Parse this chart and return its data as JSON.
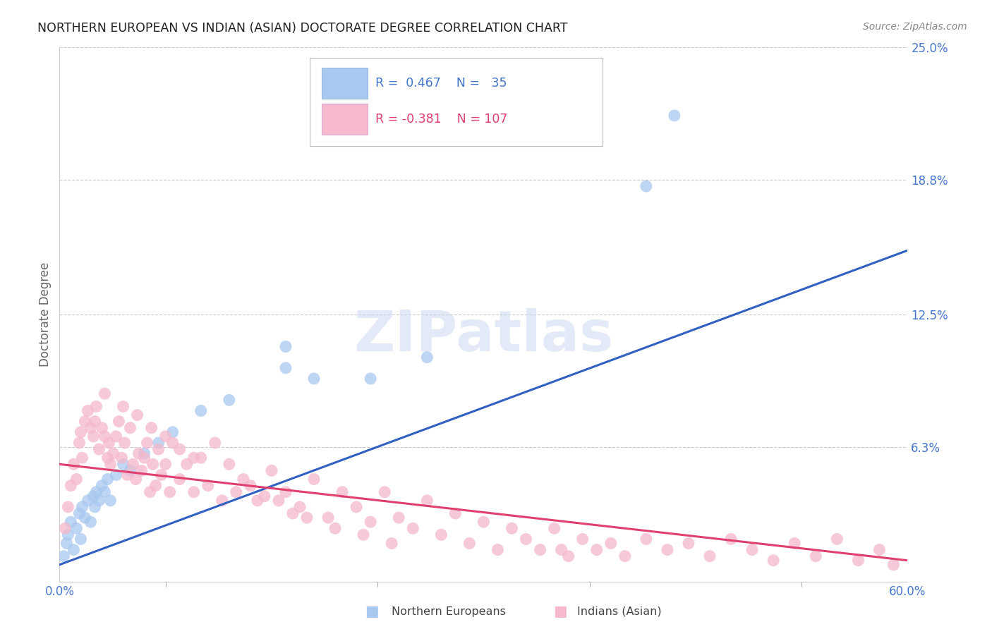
{
  "title": "NORTHERN EUROPEAN VS INDIAN (ASIAN) DOCTORATE DEGREE CORRELATION CHART",
  "source": "Source: ZipAtlas.com",
  "ylabel": "Doctorate Degree",
  "xlim": [
    0.0,
    0.6
  ],
  "ylim": [
    0.0,
    0.25
  ],
  "ytick_positions": [
    0.0,
    0.063,
    0.125,
    0.188,
    0.25
  ],
  "ytick_labels": [
    "",
    "6.3%",
    "12.5%",
    "18.8%",
    "25.0%"
  ],
  "xtick_positions": [
    0.0,
    0.15,
    0.3,
    0.45,
    0.6
  ],
  "xtick_labels": [
    "0.0%",
    "",
    "",
    "",
    "60.0%"
  ],
  "xtick_minor": [
    0.075,
    0.225,
    0.375,
    0.525
  ],
  "blue_R": 0.467,
  "blue_N": 35,
  "pink_R": -0.381,
  "pink_N": 107,
  "blue_color": "#a8c8f0",
  "pink_color": "#f5b8cc",
  "blue_line_color": "#3060c0",
  "pink_line_color": "#e04070",
  "blue_scatter_x": [
    0.003,
    0.005,
    0.006,
    0.008,
    0.01,
    0.012,
    0.014,
    0.015,
    0.016,
    0.018,
    0.02,
    0.022,
    0.024,
    0.025,
    0.026,
    0.028,
    0.03,
    0.032,
    0.034,
    0.036,
    0.04,
    0.045,
    0.05,
    0.06,
    0.07,
    0.08,
    0.1,
    0.12,
    0.16,
    0.18,
    0.22,
    0.26,
    0.16,
    0.415,
    0.435
  ],
  "blue_scatter_y": [
    0.012,
    0.018,
    0.022,
    0.028,
    0.015,
    0.025,
    0.032,
    0.02,
    0.035,
    0.03,
    0.038,
    0.028,
    0.04,
    0.035,
    0.042,
    0.038,
    0.045,
    0.042,
    0.048,
    0.038,
    0.05,
    0.055,
    0.052,
    0.06,
    0.065,
    0.07,
    0.08,
    0.085,
    0.1,
    0.095,
    0.095,
    0.105,
    0.11,
    0.185,
    0.218
  ],
  "pink_scatter_x": [
    0.004,
    0.006,
    0.008,
    0.01,
    0.012,
    0.014,
    0.015,
    0.016,
    0.018,
    0.02,
    0.022,
    0.024,
    0.025,
    0.026,
    0.028,
    0.03,
    0.032,
    0.034,
    0.035,
    0.036,
    0.038,
    0.04,
    0.042,
    0.044,
    0.046,
    0.048,
    0.05,
    0.052,
    0.054,
    0.056,
    0.058,
    0.06,
    0.062,
    0.064,
    0.066,
    0.068,
    0.07,
    0.072,
    0.075,
    0.078,
    0.08,
    0.085,
    0.09,
    0.095,
    0.1,
    0.105,
    0.11,
    0.115,
    0.12,
    0.125,
    0.13,
    0.14,
    0.15,
    0.16,
    0.17,
    0.18,
    0.19,
    0.2,
    0.21,
    0.22,
    0.23,
    0.24,
    0.25,
    0.26,
    0.27,
    0.28,
    0.29,
    0.3,
    0.31,
    0.32,
    0.33,
    0.34,
    0.35,
    0.36,
    0.37,
    0.38,
    0.39,
    0.4,
    0.415,
    0.43,
    0.445,
    0.46,
    0.475,
    0.49,
    0.505,
    0.52,
    0.535,
    0.55,
    0.565,
    0.58,
    0.59,
    0.032,
    0.045,
    0.055,
    0.065,
    0.075,
    0.085,
    0.095,
    0.135,
    0.145,
    0.155,
    0.165,
    0.175,
    0.195,
    0.215,
    0.235,
    0.355
  ],
  "pink_scatter_y": [
    0.025,
    0.035,
    0.045,
    0.055,
    0.048,
    0.065,
    0.07,
    0.058,
    0.075,
    0.08,
    0.072,
    0.068,
    0.075,
    0.082,
    0.062,
    0.072,
    0.068,
    0.058,
    0.065,
    0.055,
    0.06,
    0.068,
    0.075,
    0.058,
    0.065,
    0.05,
    0.072,
    0.055,
    0.048,
    0.06,
    0.052,
    0.058,
    0.065,
    0.042,
    0.055,
    0.045,
    0.062,
    0.05,
    0.055,
    0.042,
    0.065,
    0.048,
    0.055,
    0.042,
    0.058,
    0.045,
    0.065,
    0.038,
    0.055,
    0.042,
    0.048,
    0.038,
    0.052,
    0.042,
    0.035,
    0.048,
    0.03,
    0.042,
    0.035,
    0.028,
    0.042,
    0.03,
    0.025,
    0.038,
    0.022,
    0.032,
    0.018,
    0.028,
    0.015,
    0.025,
    0.02,
    0.015,
    0.025,
    0.012,
    0.02,
    0.015,
    0.018,
    0.012,
    0.02,
    0.015,
    0.018,
    0.012,
    0.02,
    0.015,
    0.01,
    0.018,
    0.012,
    0.02,
    0.01,
    0.015,
    0.008,
    0.088,
    0.082,
    0.078,
    0.072,
    0.068,
    0.062,
    0.058,
    0.045,
    0.04,
    0.038,
    0.032,
    0.03,
    0.025,
    0.022,
    0.018,
    0.015
  ],
  "blue_line_x": [
    0.0,
    0.6
  ],
  "blue_line_y": [
    0.008,
    0.155
  ],
  "pink_line_x": [
    0.0,
    0.6
  ],
  "pink_line_y": [
    0.055,
    0.01
  ],
  "watermark_text": "ZIPatlas",
  "background_color": "#ffffff",
  "grid_color": "#cccccc",
  "title_color": "#222222",
  "axis_label_color": "#4477cc",
  "ylabel_color": "#666666"
}
